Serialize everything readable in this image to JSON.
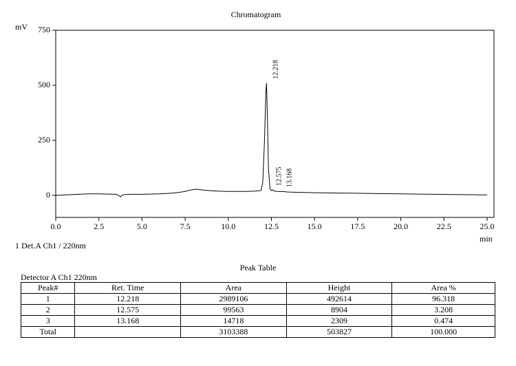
{
  "chart_data": {
    "type": "line",
    "title": "Chromatogram",
    "y_label": "mV",
    "x_label": "min",
    "detector_note": "1 Det.A Ch1 / 220nm",
    "color": "#000000",
    "x": [
      0,
      0.5,
      1,
      1.5,
      2,
      2.5,
      3,
      3.5,
      3.65,
      3.75,
      3.85,
      4,
      4.5,
      5,
      5.5,
      6,
      6.5,
      7,
      7.5,
      7.8,
      8.1,
      8.3,
      8.6,
      9,
      9.5,
      10,
      10.5,
      11,
      11.5,
      11.9,
      12.0,
      12.1,
      12.18,
      12.218,
      12.26,
      12.33,
      12.42,
      12.5,
      12.575,
      12.65,
      12.8,
      13.0,
      13.168,
      13.35,
      13.6,
      14,
      15,
      16,
      17,
      18,
      19,
      20,
      21,
      22,
      23,
      24,
      25
    ],
    "values": [
      0,
      2,
      4,
      6,
      7,
      7,
      6,
      5,
      0,
      -7,
      1,
      4,
      5,
      5,
      6,
      7,
      9,
      12,
      18,
      24,
      28,
      27,
      24,
      21,
      19,
      18,
      18,
      18,
      19,
      22,
      60,
      250,
      470,
      510,
      380,
      120,
      30,
      22,
      25,
      20,
      18,
      17,
      18,
      16,
      15,
      14,
      12,
      11,
      10,
      9,
      8,
      7,
      6,
      5,
      4,
      3,
      2
    ],
    "peak_labels": [
      12.218,
      12.575,
      13.168
    ],
    "xlim": [
      0,
      25.4
    ],
    "ylim": [
      -100,
      750
    ],
    "xticks": [
      {
        "value": 0,
        "label": "0.0"
      },
      2.5,
      {
        "value": 5,
        "label": "5.0"
      },
      7.5,
      {
        "value": 10,
        "label": "10.0"
      },
      12.5,
      {
        "value": 15,
        "label": "15.0"
      },
      17.5,
      {
        "value": 20,
        "label": "20.0"
      },
      22.5,
      {
        "value": 25,
        "label": "25.0"
      }
    ],
    "yticks": [
      0,
      250,
      500,
      750
    ]
  },
  "table": {
    "title": "Peak Table",
    "caption": "Detector A Ch1 220nm",
    "header": [
      "Peak#",
      "Ret. Time",
      "Area",
      "Height",
      "Area %"
    ],
    "rows": [
      [
        "1",
        "12.218",
        "2989106",
        "492614",
        "96.318"
      ],
      [
        "2",
        "12.575",
        "99563",
        "8904",
        "3.208"
      ],
      [
        "3",
        "13.168",
        "14718",
        "2309",
        "0.474"
      ],
      [
        "Total",
        "",
        "3103388",
        "503827",
        "100.000"
      ]
    ]
  }
}
